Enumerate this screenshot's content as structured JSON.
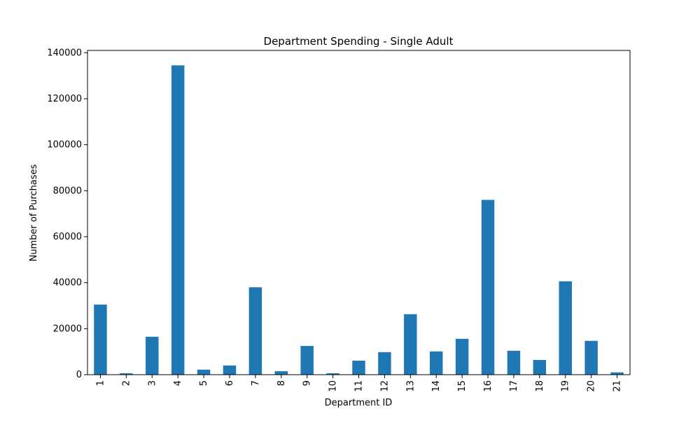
{
  "chart_data": {
    "type": "bar",
    "title": "Department Spending - Single Adult",
    "xlabel": "Department ID",
    "ylabel": "Number of Purchases",
    "categories": [
      "1",
      "2",
      "3",
      "4",
      "5",
      "6",
      "7",
      "8",
      "9",
      "10",
      "11",
      "12",
      "13",
      "14",
      "15",
      "16",
      "17",
      "18",
      "19",
      "20",
      "21"
    ],
    "values": [
      30500,
      600,
      16500,
      134500,
      2200,
      4000,
      38000,
      1500,
      12500,
      600,
      6100,
      9800,
      26300,
      10100,
      15600,
      76000,
      10400,
      6400,
      40600,
      14700,
      1000
    ],
    "yticks": [
      0,
      20000,
      40000,
      60000,
      80000,
      100000,
      120000,
      140000
    ],
    "ylim": [
      0,
      141000
    ],
    "grid": false,
    "legend": false,
    "color": "#1f77b4"
  }
}
